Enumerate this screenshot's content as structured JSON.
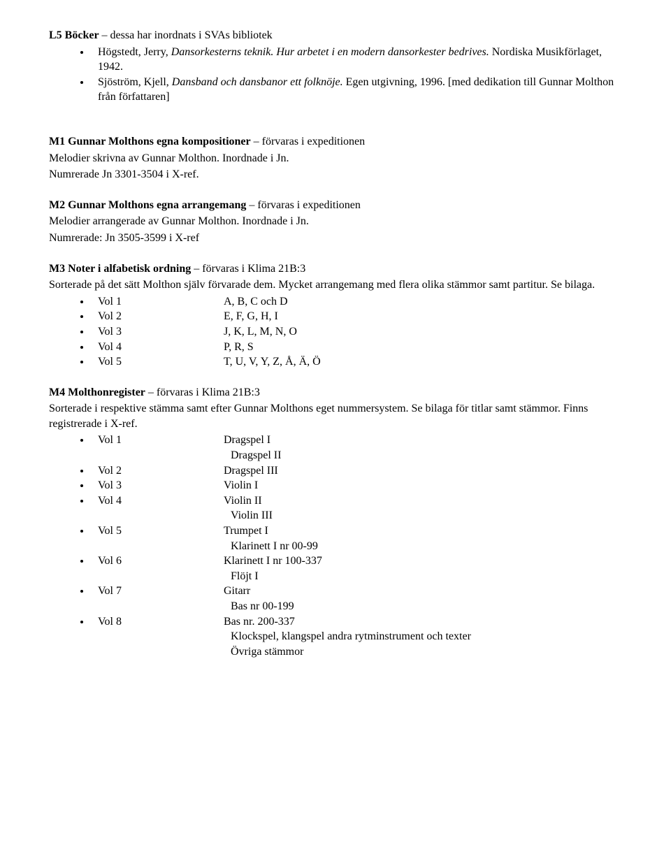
{
  "L5": {
    "heading_bold": "L5 Böcker",
    "heading_rest": " – dessa har inordnats i SVAs bibliotek",
    "book1_author": "Högstedt, Jerry, ",
    "book1_title": "Dansorkesterns teknik. Hur arbetet i en modern dansorkester bedrives.",
    "book1_pub": " Nordiska Musikförlaget, 1942.",
    "book2_author": "Sjöström, Kjell, ",
    "book2_title": "Dansband och dansbanor ett folknöje.",
    "book2_pub": " Egen utgivning, 1996. [med dedikation till Gunnar Molthon från författaren]"
  },
  "M1": {
    "heading_bold": "M1 Gunnar Molthons egna kompositioner",
    "heading_rest": " – förvaras i expeditionen",
    "line2": "Melodier skrivna av Gunnar Molthon. Inordnade i Jn.",
    "line3": "Numrerade Jn 3301-3504 i X-ref."
  },
  "M2": {
    "heading_bold": "M2 Gunnar Molthons egna arrangemang",
    "heading_rest": " – förvaras i expeditionen",
    "line2": "Melodier arrangerade av Gunnar Molthon. Inordnade i Jn.",
    "line3": "Numrerade: Jn 3505-3599 i X-ref"
  },
  "M3": {
    "heading_bold": "M3 Noter i alfabetisk ordning",
    "heading_rest": " – förvaras i Klima 21B:3",
    "desc": "Sorterade på det sätt Molthon själv förvarade dem. Mycket arrangemang med flera olika stämmor samt partitur. Se bilaga.",
    "rows": [
      {
        "a": "Vol 1",
        "b": "A, B, C och D"
      },
      {
        "a": "Vol 2",
        "b": "E, F, G, H, I"
      },
      {
        "a": "Vol 3",
        "b": "J, K, L, M, N, O"
      },
      {
        "a": "Vol 4",
        "b": "P, R, S"
      },
      {
        "a": "Vol 5",
        "b": "T, U, V, Y, Z, Å, Ä, Ö"
      }
    ]
  },
  "M4": {
    "heading_bold": "M4 Molthonregister",
    "heading_rest": " – förvaras i Klima 21B:3",
    "desc": "Sorterade i respektive stämma samt efter Gunnar Molthons eget nummersystem. Se bilaga för titlar samt stämmor. Finns registrerade i X-ref.",
    "rows": [
      {
        "a": "Vol 1",
        "b": "Dragspel I",
        "sub": [
          "Dragspel II"
        ]
      },
      {
        "a": "Vol 2",
        "b": "Dragspel III"
      },
      {
        "a": "Vol 3",
        "b": "Violin I"
      },
      {
        "a": "Vol 4",
        "b": "Violin II",
        "sub": [
          "Violin III"
        ]
      },
      {
        "a": "Vol 5",
        "b": "Trumpet I",
        "sub": [
          "Klarinett I nr 00-99"
        ]
      },
      {
        "a": "Vol 6",
        "b": "Klarinett I nr 100-337",
        "sub": [
          "Flöjt I"
        ]
      },
      {
        "a": "Vol 7",
        "b": "Gitarr",
        "sub": [
          "Bas nr 00-199"
        ]
      },
      {
        "a": "Vol 8",
        "b": "Bas nr. 200-337",
        "sub": [
          "Klockspel, klangspel andra rytminstrument och texter",
          "Övriga stämmor"
        ]
      }
    ]
  }
}
